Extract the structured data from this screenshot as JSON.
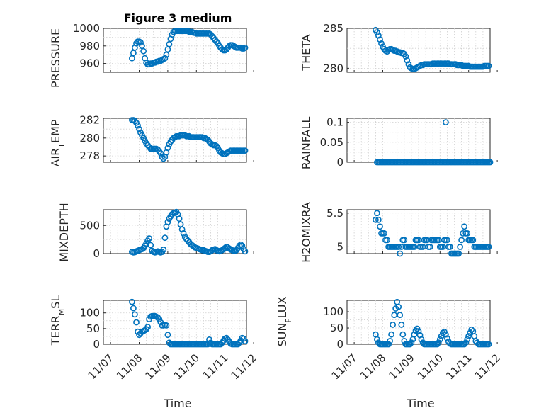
{
  "figure": {
    "title": "Figure 3 medium",
    "marker_color": "#0072bd"
  },
  "x_axis": {
    "xlabel": "Time",
    "tick_labels": [
      "11/07",
      "11/08",
      "11/09",
      "11/10",
      "11/11",
      "11/12"
    ],
    "tick_days": [
      0,
      1,
      2,
      3,
      4,
      5
    ]
  },
  "chart_data": [
    {
      "type": "scatter",
      "name": "pressure",
      "ylabel": "PRESSURE",
      "grid": true,
      "ylim": [
        950,
        1000
      ],
      "yticks": [
        960,
        980,
        1000
      ],
      "ytick_labels": [
        "960",
        "980",
        "1000"
      ],
      "x": [
        0.75,
        0.8,
        0.85,
        0.9,
        0.95,
        1.0,
        1.05,
        1.1,
        1.15,
        1.2,
        1.25,
        1.3,
        1.35,
        1.4,
        1.45,
        1.5,
        1.55,
        1.6,
        1.65,
        1.7,
        1.75,
        1.8,
        1.85,
        1.9,
        1.95,
        2.0,
        2.05,
        2.1,
        2.15,
        2.2,
        2.25,
        2.3,
        2.35,
        2.4,
        2.45,
        2.5,
        2.55,
        2.6,
        2.65,
        2.7,
        2.75,
        2.8,
        2.85,
        2.9,
        2.95,
        3.0,
        3.05,
        3.1,
        3.15,
        3.2,
        3.25,
        3.3,
        3.35,
        3.4,
        3.45,
        3.5,
        3.55,
        3.6,
        3.65,
        3.7,
        3.75,
        3.8,
        3.85,
        3.9,
        3.95,
        4.0,
        4.05,
        4.1,
        4.15,
        4.2,
        4.25,
        4.3,
        4.35,
        4.4,
        4.45,
        4.5,
        4.55,
        4.6,
        4.65,
        4.7
      ],
      "y": [
        966,
        972,
        978,
        983,
        985,
        985,
        984,
        980,
        974,
        966,
        961,
        959,
        959,
        960,
        960,
        961,
        961,
        962,
        962,
        963,
        963,
        964,
        965,
        966,
        970,
        976,
        982,
        988,
        993,
        996,
        997,
        997,
        997,
        997,
        997,
        997,
        997,
        997,
        997,
        997,
        996,
        996,
        996,
        995,
        995,
        994,
        994,
        994,
        994,
        994,
        994,
        994,
        994,
        994,
        994,
        993,
        991,
        989,
        987,
        985,
        983,
        980,
        978,
        976,
        975,
        975,
        976,
        978,
        980,
        981,
        981,
        980,
        979,
        978,
        978,
        978,
        978,
        977,
        977,
        978
      ]
    },
    {
      "type": "scatter",
      "name": "theta",
      "ylabel": "THETA",
      "grid": true,
      "ylim": [
        279.5,
        285
      ],
      "yticks": [
        280,
        285
      ],
      "ytick_labels": [
        "280",
        "285"
      ],
      "x": [
        0.75,
        0.8,
        0.85,
        0.9,
        0.95,
        1.0,
        1.05,
        1.1,
        1.15,
        1.2,
        1.25,
        1.3,
        1.35,
        1.4,
        1.45,
        1.5,
        1.55,
        1.6,
        1.65,
        1.7,
        1.75,
        1.8,
        1.85,
        1.9,
        1.95,
        2.0,
        2.05,
        2.1,
        2.15,
        2.2,
        2.25,
        2.3,
        2.35,
        2.4,
        2.45,
        2.5,
        2.55,
        2.6,
        2.65,
        2.7,
        2.75,
        2.8,
        2.85,
        2.9,
        2.95,
        3.0,
        3.05,
        3.1,
        3.15,
        3.2,
        3.25,
        3.3,
        3.35,
        3.4,
        3.45,
        3.5,
        3.55,
        3.6,
        3.65,
        3.7,
        3.75,
        3.8,
        3.85,
        3.9,
        3.95,
        4.0,
        4.05,
        4.1,
        4.15,
        4.2,
        4.25,
        4.3,
        4.35,
        4.4,
        4.45,
        4.5,
        4.55,
        4.6,
        4.65,
        4.7
      ],
      "y": [
        284.8,
        284.5,
        284.1,
        283.6,
        283.1,
        282.7,
        282.4,
        282.2,
        282.1,
        282.3,
        282.4,
        282.4,
        282.3,
        282.2,
        282.2,
        282.1,
        282.0,
        282.0,
        281.9,
        281.9,
        281.8,
        281.5,
        281.0,
        280.5,
        280.1,
        280.0,
        279.9,
        279.9,
        280.0,
        280.1,
        280.2,
        280.3,
        280.4,
        280.4,
        280.5,
        280.5,
        280.5,
        280.5,
        280.5,
        280.5,
        280.6,
        280.6,
        280.6,
        280.6,
        280.6,
        280.6,
        280.6,
        280.6,
        280.6,
        280.6,
        280.6,
        280.6,
        280.5,
        280.5,
        280.5,
        280.5,
        280.5,
        280.4,
        280.4,
        280.4,
        280.4,
        280.3,
        280.3,
        280.3,
        280.3,
        280.3,
        280.2,
        280.2,
        280.2,
        280.2,
        280.2,
        280.2,
        280.2,
        280.2,
        280.2,
        280.2,
        280.3,
        280.3,
        280.3,
        280.3
      ]
    },
    {
      "type": "scatter",
      "name": "air_temp",
      "ylabel": "AIR_TEMP",
      "grid": true,
      "ylim": [
        277.3,
        282.2
      ],
      "yticks": [
        278,
        280,
        282
      ],
      "ytick_labels": [
        "278",
        "280",
        "282"
      ],
      "x": [
        0.75,
        0.8,
        0.85,
        0.9,
        0.95,
        1.0,
        1.05,
        1.1,
        1.15,
        1.2,
        1.25,
        1.3,
        1.35,
        1.4,
        1.45,
        1.5,
        1.55,
        1.6,
        1.65,
        1.7,
        1.75,
        1.8,
        1.85,
        1.9,
        1.95,
        2.0,
        2.05,
        2.1,
        2.15,
        2.2,
        2.25,
        2.3,
        2.35,
        2.4,
        2.45,
        2.5,
        2.55,
        2.6,
        2.65,
        2.7,
        2.75,
        2.8,
        2.85,
        2.9,
        2.95,
        3.0,
        3.05,
        3.1,
        3.15,
        3.2,
        3.25,
        3.3,
        3.35,
        3.4,
        3.45,
        3.5,
        3.55,
        3.6,
        3.65,
        3.7,
        3.75,
        3.8,
        3.85,
        3.9,
        3.95,
        4.0,
        4.05,
        4.1,
        4.15,
        4.2,
        4.25,
        4.3,
        4.35,
        4.4,
        4.45,
        4.5,
        4.55,
        4.6,
        4.65,
        4.7
      ],
      "y": [
        282.0,
        282.0,
        281.9,
        281.7,
        281.4,
        281.0,
        280.6,
        280.3,
        280.0,
        279.7,
        279.4,
        279.2,
        279.0,
        278.8,
        278.8,
        278.8,
        278.8,
        278.8,
        278.7,
        278.5,
        278.3,
        277.9,
        277.7,
        277.9,
        278.4,
        278.9,
        279.3,
        279.6,
        279.8,
        280.0,
        280.1,
        280.2,
        280.2,
        280.2,
        280.3,
        280.3,
        280.3,
        280.3,
        280.2,
        280.2,
        280.2,
        280.1,
        280.1,
        280.1,
        280.1,
        280.1,
        280.1,
        280.1,
        280.1,
        280.1,
        280.0,
        280.0,
        279.9,
        279.8,
        279.6,
        279.4,
        279.3,
        279.2,
        279.2,
        279.1,
        278.9,
        278.6,
        278.4,
        278.3,
        278.2,
        278.2,
        278.3,
        278.4,
        278.5,
        278.6,
        278.6,
        278.6,
        278.6,
        278.6,
        278.6,
        278.6,
        278.6,
        278.6,
        278.6,
        278.6
      ]
    },
    {
      "type": "scatter",
      "name": "rainfall",
      "ylabel": "RAINFALL",
      "grid": true,
      "ylim": [
        0,
        0.11
      ],
      "yticks": [
        0,
        0.05,
        0.1
      ],
      "ytick_labels": [
        "0",
        "0.05",
        "0.1"
      ],
      "x": [
        0.8,
        0.85,
        0.9,
        0.95,
        1.0,
        1.05,
        1.1,
        1.15,
        1.2,
        1.25,
        1.3,
        1.35,
        1.4,
        1.45,
        1.5,
        1.55,
        1.6,
        1.65,
        1.7,
        1.75,
        1.8,
        1.85,
        1.9,
        1.95,
        2.0,
        2.05,
        2.1,
        2.15,
        2.2,
        2.25,
        2.3,
        2.35,
        2.4,
        2.45,
        2.5,
        2.55,
        2.6,
        2.65,
        2.7,
        2.75,
        2.8,
        2.85,
        2.9,
        2.95,
        3.0,
        3.05,
        3.1,
        3.15,
        3.2,
        3.25,
        3.3,
        3.35,
        3.4,
        3.45,
        3.5,
        3.55,
        3.6,
        3.65,
        3.7,
        3.75,
        3.8,
        3.85,
        3.9,
        3.95,
        4.0,
        4.05,
        4.1,
        4.15,
        4.2,
        4.25,
        4.3,
        4.35,
        4.4,
        4.45,
        4.5,
        4.55,
        4.6,
        4.65,
        4.7,
        4.75,
        3.2
      ],
      "y": [
        0,
        0,
        0,
        0,
        0,
        0,
        0,
        0,
        0,
        0,
        0,
        0,
        0,
        0,
        0,
        0,
        0,
        0,
        0,
        0,
        0,
        0,
        0,
        0,
        0,
        0,
        0,
        0,
        0,
        0,
        0,
        0,
        0,
        0,
        0,
        0,
        0,
        0,
        0,
        0,
        0,
        0,
        0,
        0,
        0,
        0,
        0,
        0,
        0,
        0,
        0,
        0,
        0,
        0,
        0,
        0,
        0,
        0,
        0,
        0,
        0,
        0,
        0,
        0,
        0,
        0,
        0,
        0,
        0,
        0,
        0,
        0,
        0,
        0,
        0,
        0,
        0,
        0,
        0,
        0,
        0.1
      ]
    },
    {
      "type": "scatter",
      "name": "mixdepth",
      "ylabel": "MIXDEPTH",
      "grid": true,
      "ylim": [
        0,
        780
      ],
      "yticks": [
        0,
        500
      ],
      "ytick_labels": [
        "0",
        "500"
      ],
      "x": [
        0.75,
        0.8,
        0.85,
        0.9,
        0.95,
        1.0,
        1.05,
        1.1,
        1.15,
        1.2,
        1.25,
        1.3,
        1.35,
        1.4,
        1.45,
        1.5,
        1.55,
        1.6,
        1.65,
        1.7,
        1.75,
        1.8,
        1.85,
        1.9,
        1.95,
        2.0,
        2.05,
        2.1,
        2.15,
        2.2,
        2.25,
        2.3,
        2.35,
        2.4,
        2.45,
        2.5,
        2.55,
        2.6,
        2.65,
        2.7,
        2.75,
        2.8,
        2.85,
        2.9,
        2.95,
        3.0,
        3.05,
        3.1,
        3.15,
        3.2,
        3.25,
        3.3,
        3.35,
        3.4,
        3.45,
        3.5,
        3.55,
        3.6,
        3.65,
        3.7,
        3.75,
        3.8,
        3.85,
        3.9,
        3.95,
        4.0,
        4.05,
        4.1,
        4.15,
        4.2,
        4.25,
        4.3,
        4.35,
        4.4,
        4.45,
        4.5,
        4.55,
        4.6,
        4.65,
        4.7
      ],
      "y": [
        30,
        20,
        25,
        40,
        50,
        60,
        70,
        80,
        100,
        140,
        180,
        230,
        270,
        150,
        50,
        30,
        20,
        30,
        40,
        30,
        20,
        30,
        70,
        280,
        480,
        560,
        620,
        660,
        700,
        720,
        730,
        740,
        700,
        620,
        520,
        430,
        360,
        300,
        260,
        230,
        200,
        170,
        150,
        130,
        110,
        100,
        90,
        80,
        70,
        60,
        60,
        50,
        40,
        30,
        30,
        40,
        60,
        70,
        80,
        60,
        50,
        40,
        50,
        60,
        80,
        100,
        120,
        110,
        90,
        70,
        60,
        50,
        50,
        60,
        100,
        140,
        160,
        140,
        80,
        40
      ]
    },
    {
      "type": "scatter",
      "name": "h2omixra",
      "ylabel": "H2OMIXRA",
      "grid": true,
      "ylim": [
        4.9,
        5.55
      ],
      "yticks": [
        5,
        5.5
      ],
      "ytick_labels": [
        "5",
        "5.5"
      ],
      "x": [
        0.75,
        0.8,
        0.85,
        0.9,
        0.95,
        1.0,
        1.05,
        1.1,
        1.15,
        1.2,
        1.25,
        1.3,
        1.35,
        1.4,
        1.45,
        1.5,
        1.55,
        1.6,
        1.65,
        1.7,
        1.75,
        1.8,
        1.85,
        1.9,
        1.95,
        2.0,
        2.05,
        2.1,
        2.15,
        2.2,
        2.25,
        2.3,
        2.35,
        2.4,
        2.45,
        2.5,
        2.55,
        2.6,
        2.65,
        2.7,
        2.75,
        2.8,
        2.85,
        2.9,
        2.95,
        3.0,
        3.05,
        3.1,
        3.15,
        3.2,
        3.25,
        3.3,
        3.35,
        3.4,
        3.45,
        3.5,
        3.55,
        3.6,
        3.65,
        3.7,
        3.75,
        3.8,
        3.85,
        3.9,
        3.95,
        4.0,
        4.05,
        4.1,
        4.15,
        4.2,
        4.25,
        4.3,
        4.35,
        4.4,
        4.45,
        4.5,
        4.55,
        4.6,
        4.65,
        4.7
      ],
      "y": [
        5.4,
        5.5,
        5.4,
        5.3,
        5.2,
        5.2,
        5.2,
        5.1,
        5.1,
        5.0,
        5.0,
        5.0,
        5.0,
        5.0,
        5.0,
        5.0,
        5.0,
        4.9,
        5.0,
        5.1,
        5.1,
        5.0,
        5.0,
        5.0,
        5.0,
        5.0,
        5.0,
        5.0,
        5.1,
        5.1,
        5.1,
        5.0,
        5.0,
        5.0,
        5.1,
        5.1,
        5.1,
        5.0,
        5.0,
        5.1,
        5.1,
        5.1,
        5.1,
        5.1,
        5.1,
        5.0,
        5.0,
        5.0,
        5.1,
        5.1,
        5.1,
        5.0,
        5.0,
        4.9,
        4.9,
        4.9,
        4.9,
        4.9,
        4.9,
        5.0,
        5.1,
        5.2,
        5.3,
        5.2,
        5.2,
        5.1,
        5.1,
        5.1,
        5.1,
        5.0,
        5.0,
        5.0,
        5.0,
        5.0,
        5.0,
        5.0,
        5.0,
        5.0,
        5.0,
        5.0
      ]
    },
    {
      "type": "scatter",
      "name": "terr_msl",
      "ylabel": "TERR_MSL",
      "grid": true,
      "ylim": [
        0,
        140
      ],
      "yticks": [
        0,
        50,
        100
      ],
      "ytick_labels": [
        "0",
        "50",
        "100"
      ],
      "x": [
        0.75,
        0.8,
        0.85,
        0.9,
        0.95,
        1.0,
        1.05,
        1.1,
        1.15,
        1.2,
        1.25,
        1.3,
        1.35,
        1.4,
        1.45,
        1.5,
        1.55,
        1.6,
        1.65,
        1.7,
        1.75,
        1.8,
        1.85,
        1.9,
        1.95,
        2.0,
        2.05,
        2.1,
        2.15,
        2.2,
        2.25,
        2.3,
        2.35,
        2.4,
        2.45,
        2.5,
        2.55,
        2.6,
        2.65,
        2.7,
        2.75,
        2.8,
        2.85,
        2.9,
        2.95,
        3.0,
        3.05,
        3.1,
        3.15,
        3.2,
        3.25,
        3.3,
        3.35,
        3.4,
        3.45,
        3.5,
        3.55,
        3.6,
        3.65,
        3.7,
        3.75,
        3.8,
        3.85,
        3.9,
        3.95,
        4.0,
        4.05,
        4.1,
        4.15,
        4.2,
        4.25,
        4.3,
        4.35,
        4.4,
        4.45,
        4.5,
        4.55,
        4.6,
        4.65,
        4.7
      ],
      "y": [
        135,
        115,
        95,
        70,
        40,
        30,
        35,
        40,
        42,
        45,
        48,
        55,
        80,
        88,
        90,
        90,
        90,
        88,
        85,
        80,
        70,
        60,
        60,
        62,
        60,
        30,
        5,
        0,
        0,
        0,
        0,
        0,
        0,
        0,
        0,
        0,
        0,
        0,
        0,
        0,
        0,
        0,
        0,
        0,
        0,
        0,
        0,
        0,
        0,
        0,
        0,
        0,
        0,
        0,
        15,
        5,
        0,
        0,
        0,
        0,
        0,
        0,
        0,
        5,
        12,
        18,
        20,
        15,
        8,
        2,
        0,
        0,
        0,
        0,
        0,
        5,
        12,
        20,
        18,
        10
      ]
    },
    {
      "type": "scatter",
      "name": "sun_flux",
      "ylabel": "SUN_FLUX",
      "grid": true,
      "ylim": [
        0,
        135
      ],
      "yticks": [
        0,
        50,
        100
      ],
      "ytick_labels": [
        "0",
        "50",
        "100"
      ],
      "x": [
        0.75,
        0.8,
        0.85,
        0.9,
        0.95,
        1.0,
        1.05,
        1.1,
        1.15,
        1.2,
        1.25,
        1.3,
        1.35,
        1.4,
        1.45,
        1.5,
        1.55,
        1.6,
        1.65,
        1.7,
        1.75,
        1.8,
        1.85,
        1.9,
        1.95,
        2.0,
        2.05,
        2.1,
        2.15,
        2.2,
        2.25,
        2.3,
        2.35,
        2.4,
        2.45,
        2.5,
        2.55,
        2.6,
        2.65,
        2.7,
        2.75,
        2.8,
        2.85,
        2.9,
        2.95,
        3.0,
        3.05,
        3.1,
        3.15,
        3.2,
        3.25,
        3.3,
        3.35,
        3.4,
        3.45,
        3.5,
        3.55,
        3.6,
        3.65,
        3.7,
        3.75,
        3.8,
        3.85,
        3.9,
        3.95,
        4.0,
        4.05,
        4.1,
        4.15,
        4.2,
        4.25,
        4.3,
        4.35,
        4.4,
        4.45,
        4.5,
        4.55,
        4.6,
        4.65,
        4.7
      ],
      "y": [
        30,
        15,
        5,
        0,
        0,
        0,
        0,
        0,
        0,
        0,
        10,
        30,
        60,
        90,
        110,
        130,
        115,
        90,
        60,
        30,
        10,
        0,
        0,
        0,
        0,
        5,
        15,
        30,
        42,
        48,
        40,
        28,
        15,
        5,
        0,
        0,
        0,
        0,
        0,
        0,
        0,
        0,
        0,
        0,
        5,
        15,
        25,
        35,
        38,
        30,
        18,
        8,
        2,
        0,
        0,
        0,
        0,
        0,
        0,
        0,
        0,
        0,
        0,
        5,
        15,
        25,
        35,
        45,
        40,
        25,
        10,
        5,
        0,
        0,
        0,
        0,
        0,
        0,
        0,
        0
      ]
    }
  ]
}
